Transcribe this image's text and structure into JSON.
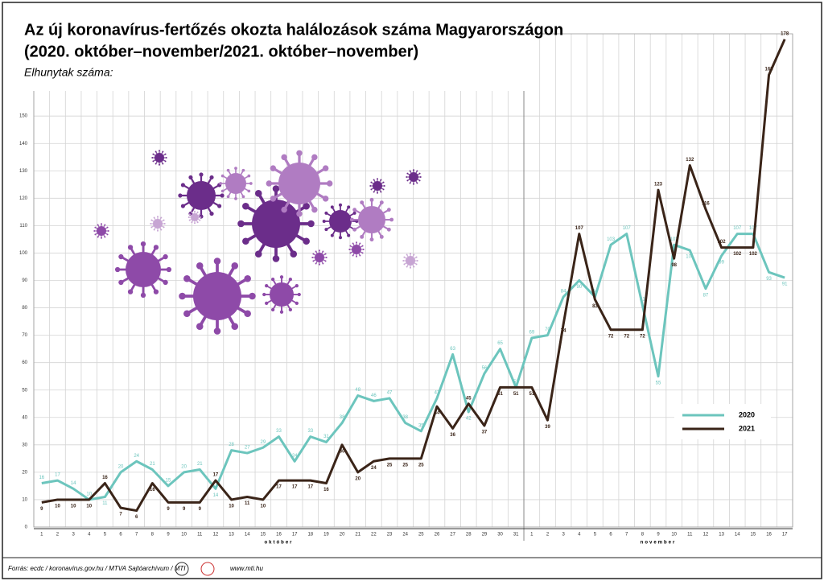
{
  "chart_data": {
    "type": "line",
    "title": "Az új koronavírus-fertőzés okozta halálozások száma Magyarországon",
    "subtitle": "(2020. október–november/2021. október–november)",
    "y_label": "Elhunytak száma:",
    "categories": [
      "1",
      "2",
      "3",
      "4",
      "5",
      "6",
      "7",
      "8",
      "9",
      "10",
      "11",
      "12",
      "13",
      "14",
      "15",
      "16",
      "17",
      "18",
      "19",
      "20",
      "21",
      "22",
      "23",
      "24",
      "25",
      "26",
      "27",
      "28",
      "29",
      "30",
      "31",
      "1",
      "2",
      "3",
      "4",
      "5",
      "6",
      "7",
      "8",
      "9",
      "10",
      "11",
      "12",
      "13",
      "14",
      "15",
      "16",
      "17"
    ],
    "months": [
      "október",
      "november"
    ],
    "series": [
      {
        "name": "2020",
        "color": "#6cc5bd",
        "values": [
          16,
          17,
          14,
          10,
          11,
          20,
          24,
          21,
          15,
          20,
          21,
          14,
          28,
          27,
          29,
          33,
          24,
          33,
          31,
          38,
          48,
          46,
          47,
          38,
          35,
          47,
          63,
          42,
          56,
          65,
          51,
          69,
          70,
          84,
          90,
          84,
          103,
          107,
          81,
          55,
          103,
          101,
          87,
          99,
          107,
          107,
          93,
          91
        ]
      },
      {
        "name": "2021",
        "color": "#3a2418",
        "values": [
          9,
          10,
          10,
          10,
          16,
          7,
          6,
          16,
          9,
          9,
          9,
          17,
          10,
          11,
          10,
          17,
          17,
          17,
          16,
          30,
          20,
          24,
          25,
          25,
          25,
          44,
          36,
          45,
          37,
          51,
          51,
          51,
          39,
          74,
          107,
          83,
          72,
          72,
          72,
          123,
          98,
          132,
          116,
          102,
          102,
          102,
          165,
          178
        ]
      }
    ],
    "ylim": [
      0,
      180
    ],
    "yticks": [
      0,
      10,
      20,
      30,
      40,
      50,
      60,
      70,
      80,
      90,
      100,
      110,
      120,
      130,
      140,
      150
    ],
    "grid": true,
    "legend": "lower right",
    "source": "Forrás: ecdc / koronavírus.gov.hu / MTVA Sajtóarchívum / MTI",
    "website": "www.mti.hu"
  }
}
